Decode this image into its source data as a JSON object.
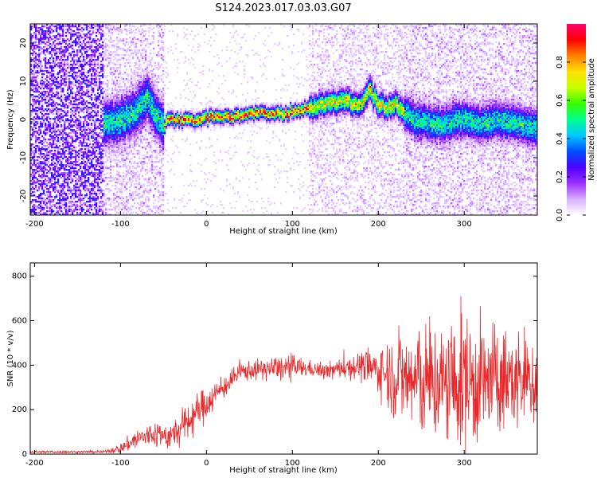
{
  "title": "S124.2023.017.03.03.G07",
  "colors": {
    "snr_series": "#e8282a",
    "spectro_low": "#ffffff",
    "spectro_colormap": [
      "#ffffff",
      "#d8b0ff",
      "#9b30ff",
      "#4b00ff",
      "#0050ff",
      "#00c8ff",
      "#00ff90",
      "#38ff00",
      "#c8ff00",
      "#ffe000",
      "#ff8000",
      "#ff0000",
      "#ff0070"
    ]
  },
  "chart_data": [
    {
      "type": "heatmap",
      "title": "S124.2023.017.03.03.G07",
      "xlabel": "Height of straight line (km)",
      "ylabel": "Frequency (Hz)",
      "xlim": [
        -205,
        385
      ],
      "ylim": [
        -25,
        25
      ],
      "xticks": [
        -200,
        -100,
        0,
        100,
        200,
        300
      ],
      "yticks": [
        -20,
        -10,
        0,
        10,
        20
      ],
      "colorbar": {
        "label": "Normalized spectral amplitude",
        "range": [
          0,
          1
        ],
        "ticks": [
          "0.0",
          "0.2",
          "0.4",
          "0.6",
          "0.8"
        ]
      },
      "ridge": {
        "description": "peak-frequency track (Hz) vs height (km)",
        "x": [
          -120,
          -100,
          -80,
          -70,
          -60,
          -50,
          -45,
          -30,
          -10,
          0,
          20,
          40,
          60,
          80,
          100,
          110,
          120,
          140,
          160,
          180,
          190,
          200,
          210,
          220,
          240,
          260,
          280,
          300,
          320,
          340,
          360,
          380
        ],
        "y": [
          -1,
          0,
          2,
          6,
          2,
          -2,
          0,
          0,
          0,
          0.5,
          1,
          1,
          1.5,
          1.5,
          2,
          2,
          3,
          4,
          5,
          4,
          8,
          4,
          3,
          4,
          0,
          -1,
          -1,
          0,
          -1,
          0,
          -1,
          -2
        ]
      },
      "regions": [
        {
          "x": [
            -205,
            -120
          ],
          "type": "broadband noise, low amplitude"
        },
        {
          "x": [
            -120,
            -50
          ],
          "type": "broad, moderate amplitude"
        },
        {
          "x": [
            -50,
            120
          ],
          "type": "narrow peak, high amplitude"
        },
        {
          "x": [
            120,
            230
          ],
          "type": "moderately narrow, high amplitude"
        },
        {
          "x": [
            230,
            385
          ],
          "type": "broad, moderate amplitude"
        }
      ]
    },
    {
      "type": "line",
      "xlabel": "Height of straight line (km)",
      "ylabel": "SNR (10 * v/v)",
      "xlim": [
        -205,
        385
      ],
      "ylim": [
        0,
        860
      ],
      "xticks": [
        -200,
        -100,
        0,
        100,
        200,
        300
      ],
      "yticks": [
        0,
        200,
        400,
        600,
        800
      ],
      "envelope": {
        "description": "approximate mean SNR and noise amplitude vs height",
        "x": [
          -205,
          -120,
          -100,
          -80,
          -60,
          -40,
          -20,
          0,
          20,
          40,
          60,
          80,
          100,
          120,
          140,
          160,
          180,
          200,
          220,
          240,
          260,
          280,
          300,
          320,
          340,
          360,
          385
        ],
        "mean": [
          10,
          10,
          25,
          70,
          90,
          80,
          150,
          230,
          300,
          370,
          380,
          385,
          390,
          385,
          370,
          390,
          395,
          380,
          350,
          330,
          320,
          310,
          330,
          320,
          330,
          330,
          340
        ],
        "spread": [
          5,
          5,
          20,
          45,
          55,
          60,
          80,
          70,
          45,
          40,
          40,
          50,
          55,
          30,
          35,
          45,
          60,
          90,
          180,
          230,
          240,
          250,
          300,
          250,
          220,
          200,
          220
        ]
      }
    }
  ]
}
